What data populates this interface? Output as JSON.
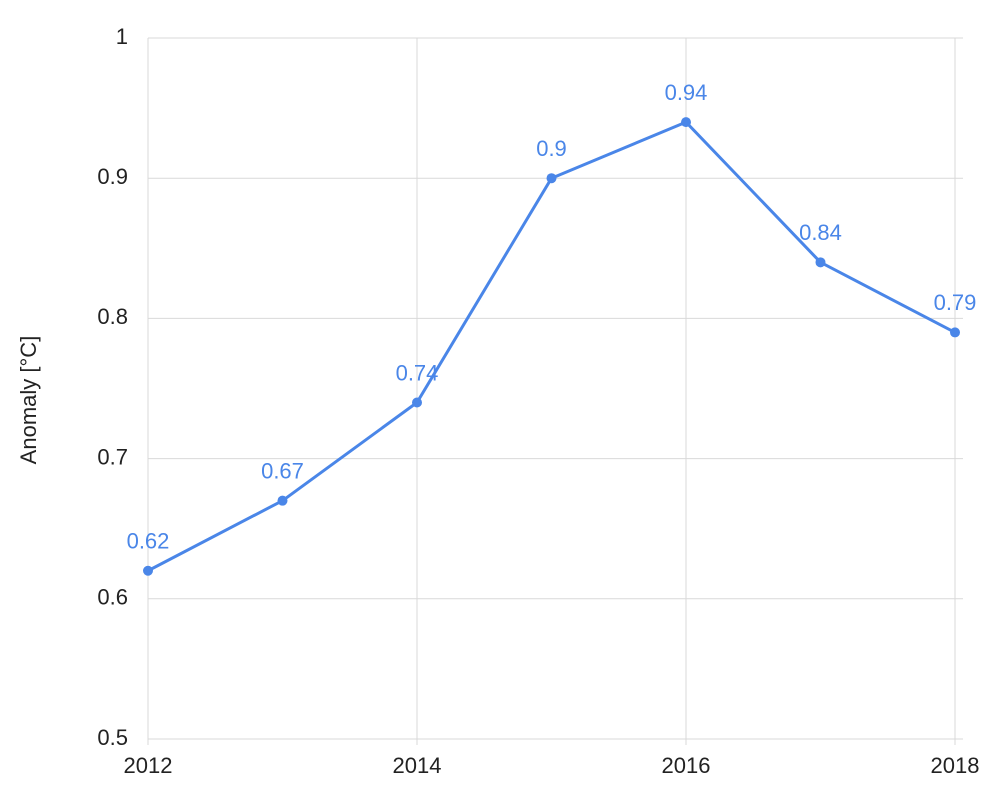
{
  "chart_data": {
    "type": "line",
    "y_label": "Anomaly [°C]",
    "x": [
      2012,
      2013,
      2014,
      2015,
      2016,
      2017,
      2018
    ],
    "series": [
      {
        "color": "#4a86e8",
        "values": [
          0.62,
          0.67,
          0.74,
          0.9,
          0.94,
          0.84,
          0.79
        ]
      }
    ],
    "xlim": [
      2012,
      2018
    ],
    "xticks": [
      2012,
      2014,
      2016,
      2018
    ],
    "ylim": [
      0.5,
      1
    ],
    "yticks": [
      0.5,
      0.6,
      0.7,
      0.8,
      0.9,
      1
    ],
    "grid": true
  }
}
